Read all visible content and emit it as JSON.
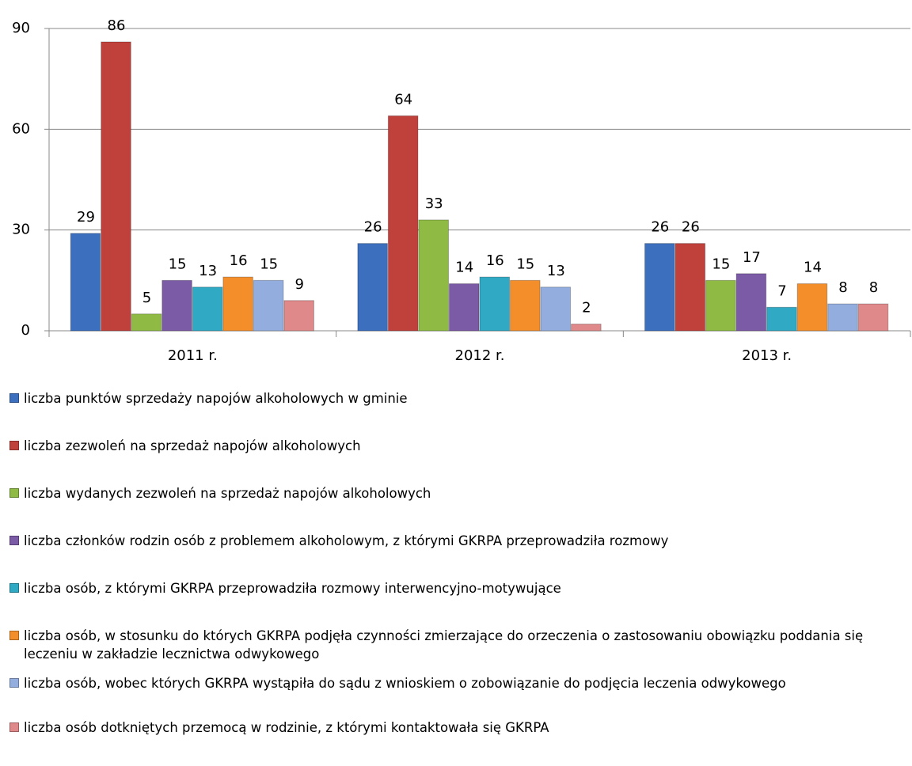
{
  "chart_data": {
    "type": "bar",
    "categories": [
      "2011 r.",
      "2012 r.",
      "2013 r."
    ],
    "series": [
      {
        "name": "liczba punktów sprzedaży napojów alkoholowych w gminie",
        "color": "#3c6fbe",
        "values": [
          29,
          26,
          26
        ]
      },
      {
        "name": "liczba zezwoleń na sprzedaż napojów alkoholowych",
        "color": "#c0403c",
        "values": [
          86,
          64,
          26
        ]
      },
      {
        "name": "liczba wydanych zezwoleń na sprzedaż napojów alkoholowych",
        "color": "#8fbb45",
        "values": [
          5,
          33,
          15
        ]
      },
      {
        "name": "liczba członków rodzin osób z problemem alkoholowym, z którymi GKRPA przeprowadziła rozmowy",
        "color": "#7b5aa6",
        "values": [
          15,
          14,
          17
        ]
      },
      {
        "name": "liczba osób, z którymi GKRPA przeprowadziła rozmowy interwencyjno-motywujące",
        "color": "#2fa9c4",
        "values": [
          13,
          16,
          7
        ]
      },
      {
        "name": "liczba osób, w stosunku do których GKRPA podjęła czynności zmierzające do orzeczenia o zastosowaniu obowiązku poddania się leczeniu w zakładzie lecznictwa odwykowego",
        "color": "#f38e2b",
        "values": [
          16,
          15,
          14
        ]
      },
      {
        "name": "liczba osób, wobec których GKRPA wystąpiła do sądu z wnioskiem o zobowiązanie do podjęcia leczenia odwykowego",
        "color": "#93aede",
        "values": [
          15,
          13,
          8
        ]
      },
      {
        "name": "liczba osób dotkniętych przemocą w rodzinie, z którymi kontaktowała się GKRPA",
        "color": "#e0898a",
        "values": [
          9,
          2,
          8
        ]
      }
    ],
    "ylim": [
      0,
      90
    ],
    "yticks": [
      0,
      30,
      60,
      90
    ],
    "grid": true,
    "legend": "bottom"
  }
}
